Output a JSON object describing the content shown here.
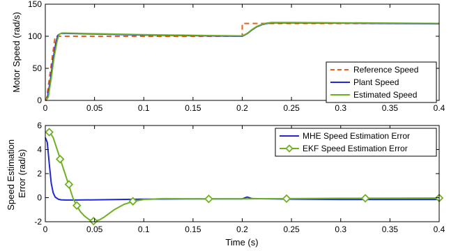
{
  "chart_data": [
    {
      "type": "line",
      "title": "",
      "xlabel": "",
      "ylabel": "Motor Speed (rad/s)",
      "xlim": [
        0,
        0.4
      ],
      "ylim": [
        0,
        150
      ],
      "xticks": [
        "0",
        "0.05",
        "0.1",
        "0.15",
        "0.2",
        "0.25",
        "0.3",
        "0.35",
        "0.4"
      ],
      "yticks": [
        "0",
        "50",
        "100",
        "150"
      ],
      "grid": false,
      "legend_position": "bottom-right",
      "series": [
        {
          "name": "Reference Speed",
          "color": "#e8601c",
          "style": "dashed",
          "x": [
            0,
            0.001,
            0.01,
            0.2,
            0.2,
            0.4
          ],
          "y": [
            0,
            0,
            100,
            100,
            120,
            120
          ]
        },
        {
          "name": "Plant Speed",
          "color": "#1f28d6",
          "style": "solid",
          "x": [
            0,
            0.002,
            0.005,
            0.008,
            0.011,
            0.013,
            0.016,
            0.02,
            0.05,
            0.1,
            0.15,
            0.199,
            0.2,
            0.205,
            0.21,
            0.215,
            0.22,
            0.225,
            0.23,
            0.25,
            0.3,
            0.35,
            0.4
          ],
          "y": [
            0,
            3,
            30,
            65,
            92,
            102,
            104.5,
            104.5,
            103.5,
            102,
            101,
            100,
            100,
            104,
            110,
            115,
            118,
            120,
            121,
            121,
            120.5,
            120,
            119.5
          ]
        },
        {
          "name": "Estimated Speed",
          "color": "#6fb023",
          "style": "solid",
          "x": [
            0,
            0.003,
            0.006,
            0.009,
            0.012,
            0.014,
            0.017,
            0.02,
            0.05,
            0.1,
            0.15,
            0.199,
            0.2,
            0.205,
            0.21,
            0.215,
            0.22,
            0.225,
            0.23,
            0.25,
            0.3,
            0.35,
            0.4
          ],
          "y": [
            0,
            5,
            35,
            68,
            93,
            103,
            105,
            105,
            104,
            102.5,
            101.5,
            100.5,
            100.5,
            104.5,
            110.5,
            115.5,
            118.5,
            120.5,
            121.5,
            121.5,
            121,
            120.5,
            120
          ]
        }
      ]
    },
    {
      "type": "line",
      "title": "",
      "xlabel": "Time (s)",
      "ylabel": "Speed Estimation Error (rad/s)",
      "ylabel_lines": [
        "Speed Estimation",
        "Error (rad/s)"
      ],
      "xlim": [
        0,
        0.4
      ],
      "ylim": [
        -2,
        6
      ],
      "xticks": [
        "0",
        "0.05",
        "0.1",
        "0.15",
        "0.2",
        "0.25",
        "0.3",
        "0.35",
        "0.4"
      ],
      "yticks": [
        "-2",
        "0",
        "2",
        "4",
        "6"
      ],
      "grid": false,
      "legend_position": "top-right",
      "series": [
        {
          "name": "MHE Speed Estimation Error",
          "color": "#1f28d6",
          "style": "solid",
          "x": [
            0,
            0.002,
            0.004,
            0.006,
            0.008,
            0.01,
            0.013,
            0.016,
            0.02,
            0.03,
            0.05,
            0.1,
            0.15,
            0.2,
            0.205,
            0.21,
            0.25,
            0.3,
            0.35,
            0.4
          ],
          "y": [
            5,
            4.6,
            2.8,
            1.2,
            0.4,
            0.05,
            -0.12,
            -0.18,
            -0.2,
            -0.2,
            -0.18,
            -0.12,
            -0.1,
            -0.1,
            0.05,
            -0.08,
            -0.12,
            -0.15,
            -0.15,
            -0.15
          ]
        },
        {
          "name": "EKF Speed Estimation Error",
          "color": "#6fb023",
          "style": "solid",
          "marker": "diamond",
          "x": [
            0,
            0.004,
            0.008,
            0.012,
            0.016,
            0.02,
            0.024,
            0.028,
            0.032,
            0.036,
            0.04,
            0.045,
            0.05,
            0.055,
            0.06,
            0.07,
            0.08,
            0.09,
            0.1,
            0.12,
            0.15,
            0.2,
            0.25,
            0.3,
            0.35,
            0.4
          ],
          "y": [
            5.4,
            5.5,
            5.0,
            4.0,
            3.0,
            2.0,
            1.0,
            0.0,
            -0.7,
            -1.2,
            -1.55,
            -1.85,
            -1.95,
            -1.85,
            -1.6,
            -1.0,
            -0.55,
            -0.3,
            -0.15,
            -0.08,
            -0.1,
            -0.1,
            -0.08,
            -0.05,
            -0.04,
            -0.03
          ],
          "marker_points": {
            "x": [
              0.004,
              0.015,
              0.024,
              0.032,
              0.049,
              0.089,
              0.166,
              0.245,
              0.325,
              0.4
            ],
            "y": [
              5.45,
              3.2,
              1.1,
              -0.65,
              -1.95,
              -0.3,
              -0.1,
              -0.08,
              -0.05,
              -0.03
            ]
          }
        }
      ]
    }
  ]
}
